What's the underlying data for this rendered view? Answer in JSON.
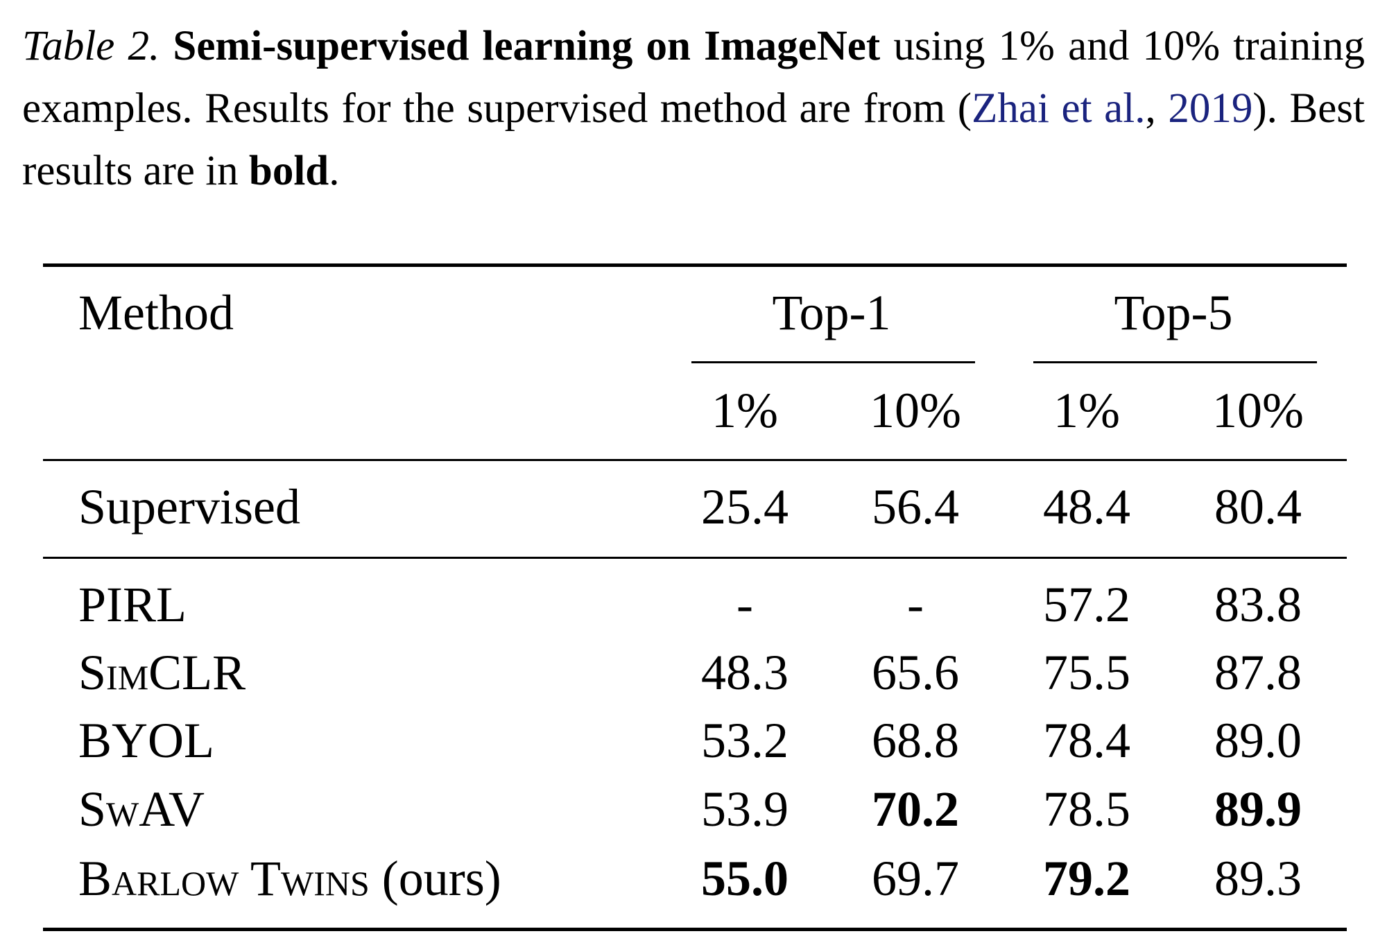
{
  "caption": {
    "segments": [
      {
        "text": "Table 2.",
        "style": "italic"
      },
      {
        "text": " ",
        "style": "normal"
      },
      {
        "text": "Semi-supervised learning on ImageNet",
        "style": "bold"
      },
      {
        "text": " using 1% and 10% training examples. Results for the supervised method are from (",
        "style": "normal"
      },
      {
        "text": "Zhai et al.",
        "style": "link"
      },
      {
        "text": ", ",
        "style": "normal"
      },
      {
        "text": "2019",
        "style": "link"
      },
      {
        "text": "). Best results are in ",
        "style": "normal"
      },
      {
        "text": "bold",
        "style": "bold"
      },
      {
        "text": ".",
        "style": "normal"
      }
    ]
  },
  "table": {
    "header": {
      "method": "Method",
      "groups": [
        "Top-1",
        "Top-5"
      ],
      "subcolumns": [
        "1%",
        "10%",
        "1%",
        "10%"
      ]
    },
    "rows": [
      {
        "method": [
          {
            "text": "Supervised",
            "smallcaps": false
          }
        ],
        "cells": [
          {
            "text": "25.4",
            "bold": false
          },
          {
            "text": "56.4",
            "bold": false
          },
          {
            "text": "48.4",
            "bold": false
          },
          {
            "text": "80.4",
            "bold": false
          }
        ]
      },
      {
        "method": [
          {
            "text": "PIRL",
            "smallcaps": false
          }
        ],
        "cells": [
          {
            "text": "-",
            "bold": false
          },
          {
            "text": "-",
            "bold": false
          },
          {
            "text": "57.2",
            "bold": false
          },
          {
            "text": "83.8",
            "bold": false
          }
        ]
      },
      {
        "method": [
          {
            "text": "SimCLR",
            "smallcaps": true
          }
        ],
        "cells": [
          {
            "text": "48.3",
            "bold": false
          },
          {
            "text": "65.6",
            "bold": false
          },
          {
            "text": "75.5",
            "bold": false
          },
          {
            "text": "87.8",
            "bold": false
          }
        ]
      },
      {
        "method": [
          {
            "text": "BYOL",
            "smallcaps": false
          }
        ],
        "cells": [
          {
            "text": "53.2",
            "bold": false
          },
          {
            "text": "68.8",
            "bold": false
          },
          {
            "text": "78.4",
            "bold": false
          },
          {
            "text": "89.0",
            "bold": false
          }
        ]
      },
      {
        "method": [
          {
            "text": "SwAV",
            "smallcaps": true
          }
        ],
        "cells": [
          {
            "text": "53.9",
            "bold": false
          },
          {
            "text": "70.2",
            "bold": true
          },
          {
            "text": "78.5",
            "bold": false
          },
          {
            "text": "89.9",
            "bold": true
          }
        ]
      },
      {
        "method": [
          {
            "text": "Barlow Twins",
            "smallcaps": true
          },
          {
            "text": " (ours)",
            "smallcaps": false
          }
        ],
        "cells": [
          {
            "text": "55.0",
            "bold": true
          },
          {
            "text": "69.7",
            "bold": false
          },
          {
            "text": "79.2",
            "bold": true
          },
          {
            "text": "89.3",
            "bold": false
          }
        ]
      }
    ]
  }
}
